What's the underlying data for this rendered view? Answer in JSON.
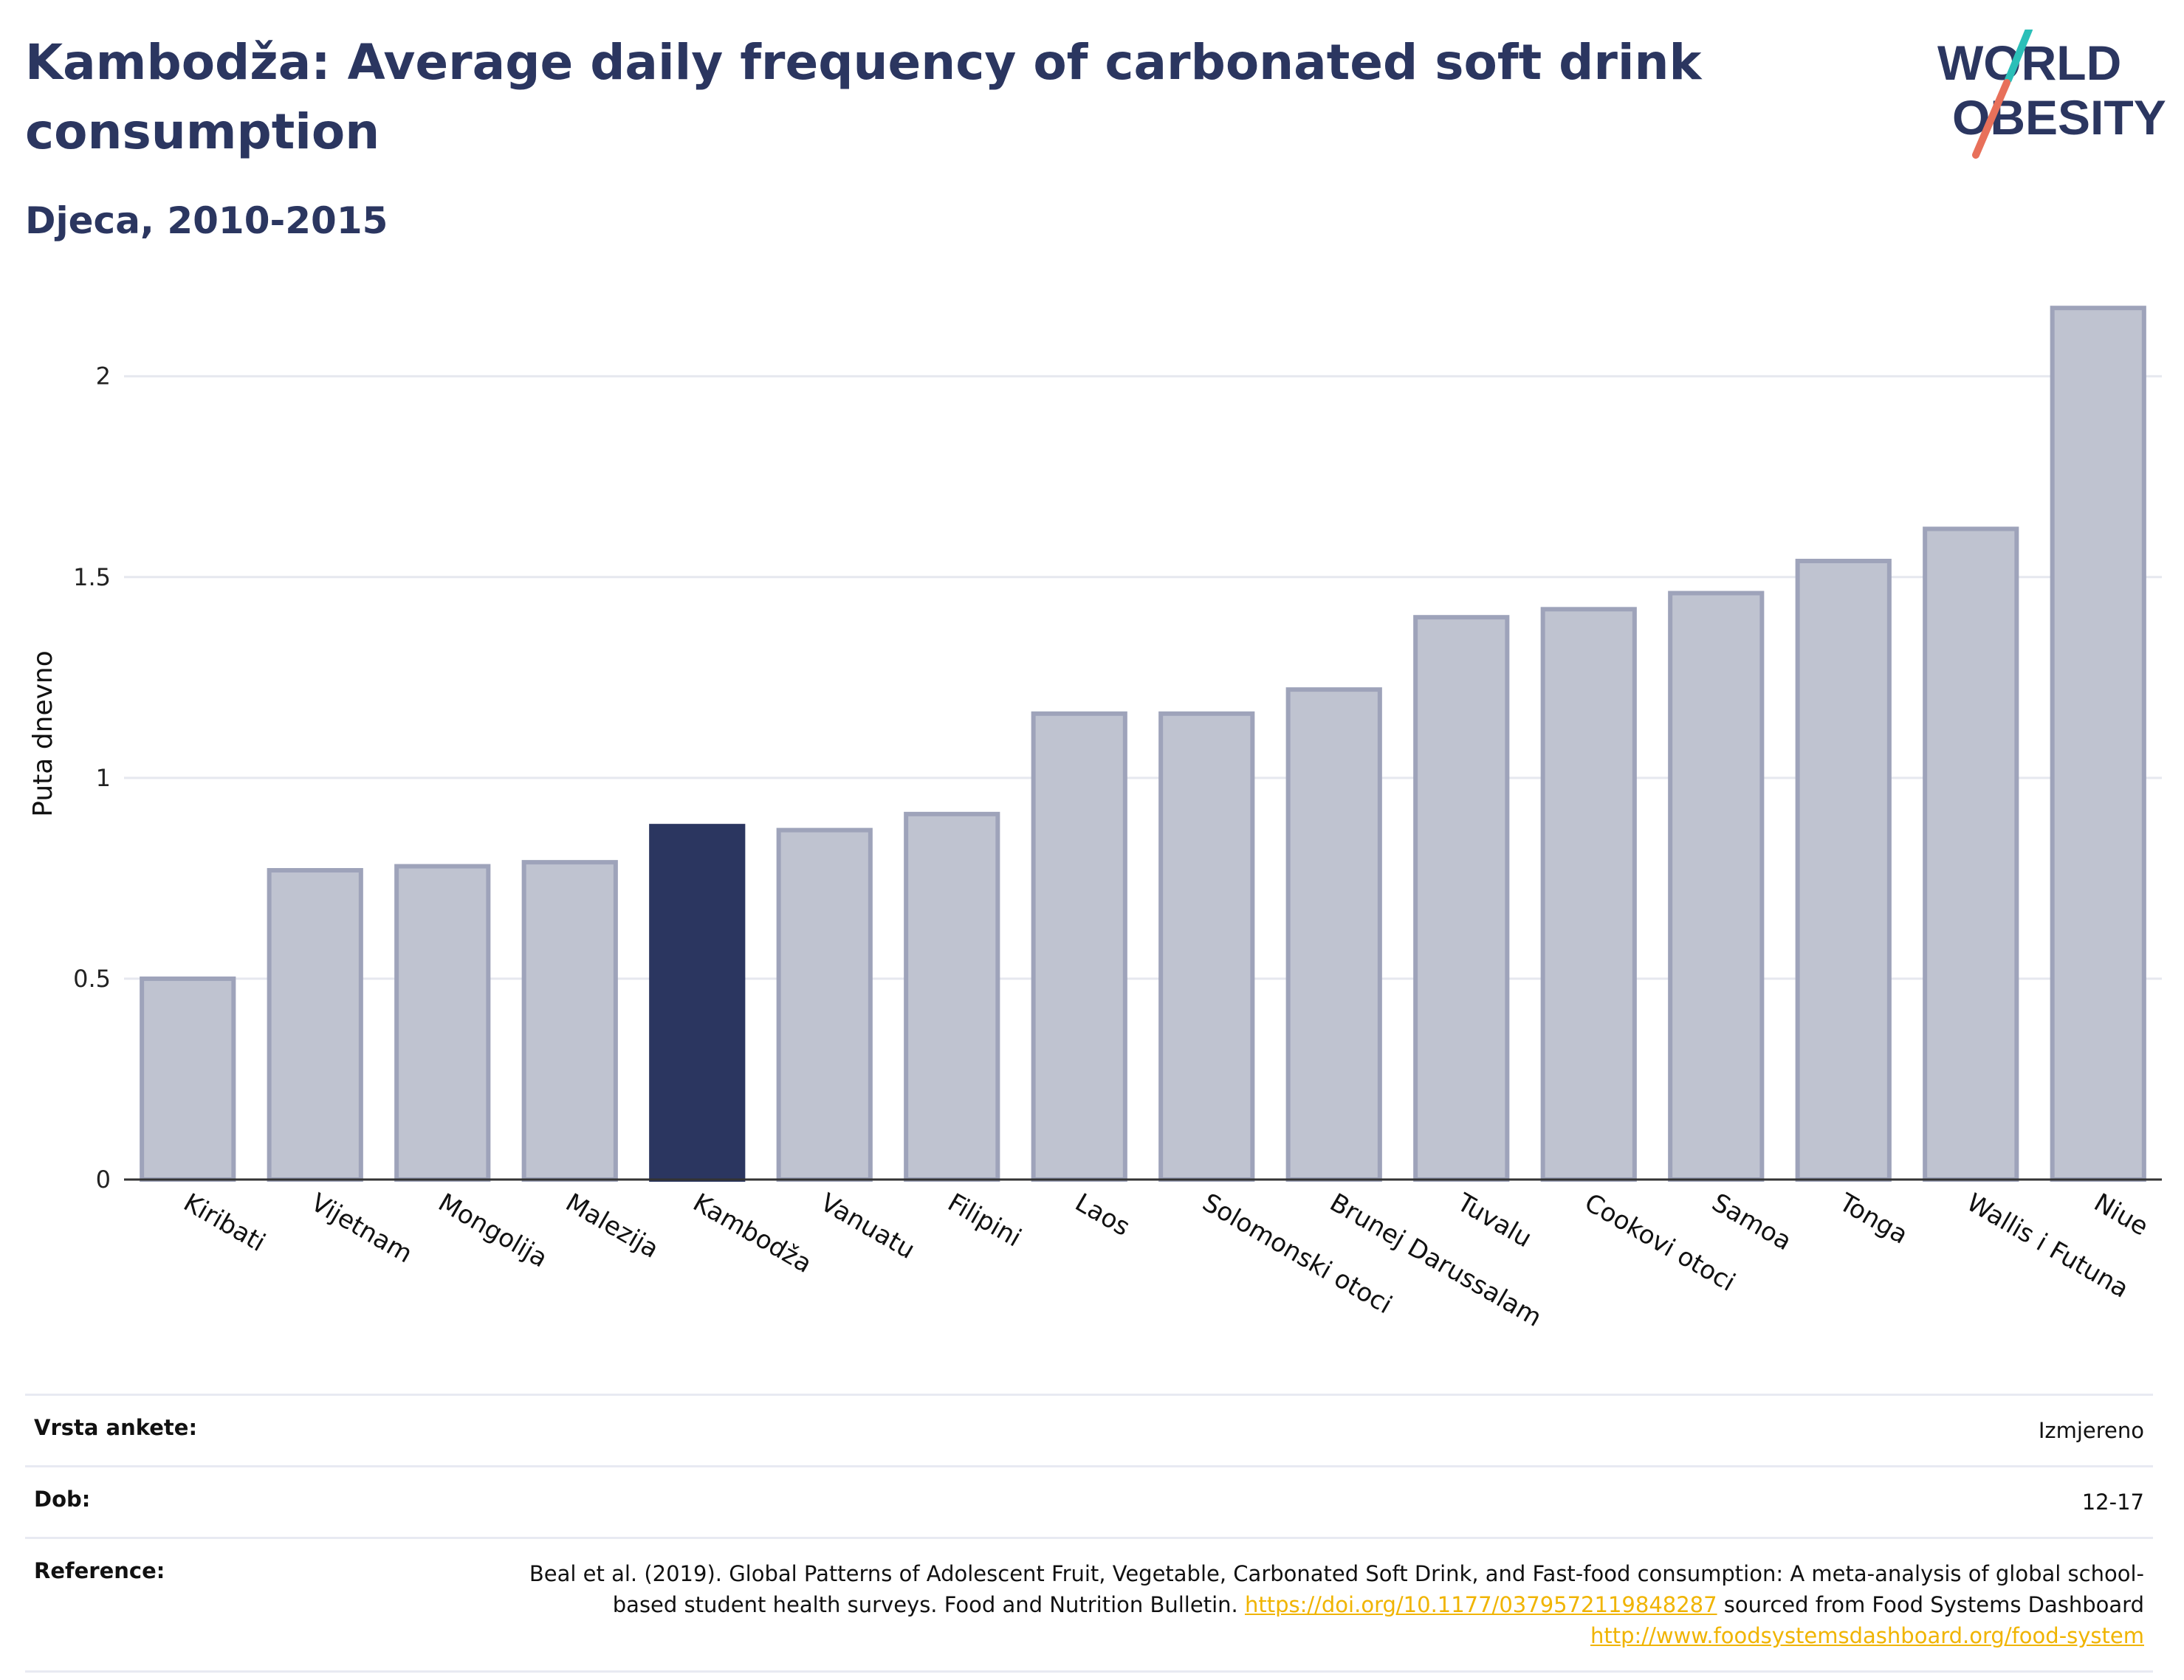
{
  "header": {
    "title": "Kambodža: Average daily frequency of carbonated soft drink consumption",
    "subtitle": "Djeca, 2010-2015"
  },
  "logo": {
    "line1": "WORLD",
    "line2": "OBESITY",
    "slash_colors": [
      "#2bbfb8",
      "#e8705a"
    ]
  },
  "chart_data": {
    "type": "bar",
    "title": "",
    "xlabel": "",
    "ylabel": "Puta dnevno",
    "ylim": [
      0,
      2.22
    ],
    "yticks": [
      0,
      0.5,
      1,
      1.5,
      2
    ],
    "ytick_labels": [
      "0",
      "0.5",
      "1",
      "1.5",
      "2"
    ],
    "grid": true,
    "categories": [
      "Kiribati",
      "Vijetnam",
      "Mongolija",
      "Malezija",
      "Kambodža",
      "Vanuatu",
      "Filipini",
      "Laos",
      "Solomonski otoci",
      "Brunej Darussalam",
      "Tuvalu",
      "Cookovi otoci",
      "Samoa",
      "Tonga",
      "Wallis i Futuna",
      "Niue"
    ],
    "values": [
      0.5,
      0.77,
      0.78,
      0.79,
      0.88,
      0.87,
      0.91,
      1.16,
      1.16,
      1.22,
      1.4,
      1.42,
      1.46,
      1.54,
      1.62,
      2.17
    ],
    "highlight": "Kambodža",
    "colors": {
      "bar": "#bfc3d0",
      "bar_edge": "#9ea3ba",
      "highlight": "#2b3660",
      "grid": "#e6e8ef",
      "axis": "#333333"
    }
  },
  "meta": {
    "survey_label": "Vrsta ankete:",
    "survey_value": "Izmjereno",
    "age_label": "Dob:",
    "age_value": "12-17",
    "ref_label": "Reference:",
    "ref_text1": "Beal et al. (2019). Global Patterns of Adolescent Fruit, Vegetable, Carbonated Soft Drink, and Fast-food consumption: A meta-analysis of global school-based student health surveys. Food and Nutrition Bulletin.",
    "ref_link1": "https://doi.org/10.1177/0379572119848287",
    "ref_text2": "sourced from Food Systems Dashboard",
    "ref_link2": "http://www.foodsystemsdashboard.org/food-system"
  }
}
